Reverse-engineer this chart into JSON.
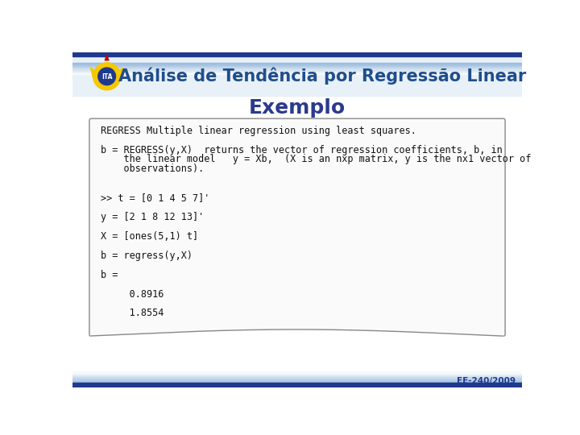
{
  "title": "Análise de Tendência por Regressão Linear",
  "subtitle": "Exemplo",
  "title_color": "#1F4E8C",
  "subtitle_color": "#2B3A8C",
  "bg_color": "#FFFFFF",
  "header_bg": "#DDEEFF",
  "top_bar_dark": "#1F3A8C",
  "top_bar_light": "#99BBDD",
  "bottom_bar_dark": "#1F3A8C",
  "bottom_bar_light": "#99BBDD",
  "footer_text": "EE-240/2009",
  "footer_color": "#1F3A8C",
  "box_border_color": "#888888",
  "code_font_size": 8.5,
  "title_font_size": 15,
  "subtitle_font_size": 18,
  "code_lines": [
    "REGRESS Multiple linear regression using least squares.",
    "",
    "b = REGRESS(y,X)  returns the vector of regression coefficients, b, in",
    "    the linear model   y = Xb,  (X is an nxp matrix, y is the nx1 vector of",
    "    observations).",
    "",
    "",
    ">> t = [0 1 4 5 7]'",
    "",
    "y = [2 1 8 12 13]'",
    "",
    "X = [ones(5,1) t]",
    "",
    "b = regress(y,X)",
    "",
    "b =",
    "",
    "     0.8916",
    "",
    "     1.8554"
  ]
}
